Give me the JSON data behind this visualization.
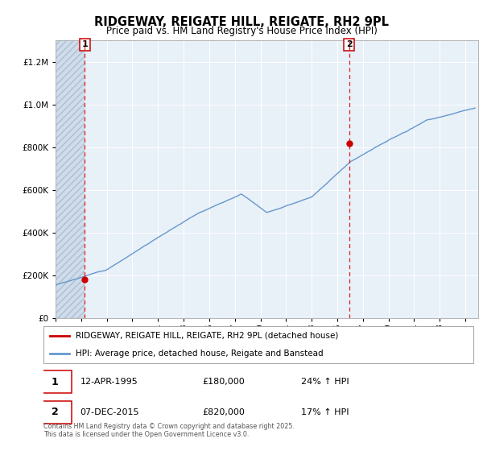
{
  "title": "RIDGEWAY, REIGATE HILL, REIGATE, RH2 9PL",
  "subtitle": "Price paid vs. HM Land Registry's House Price Index (HPI)",
  "legend_line1": "RIDGEWAY, REIGATE HILL, REIGATE, RH2 9PL (detached house)",
  "legend_line2": "HPI: Average price, detached house, Reigate and Banstead",
  "annotation1_date": "12-APR-1995",
  "annotation1_price": "£180,000",
  "annotation1_hpi": "24% ↑ HPI",
  "annotation2_date": "07-DEC-2015",
  "annotation2_price": "£820,000",
  "annotation2_hpi": "17% ↑ HPI",
  "footer": "Contains HM Land Registry data © Crown copyright and database right 2025.\nThis data is licensed under the Open Government Licence v3.0.",
  "red_line_color": "#cc0000",
  "blue_line_color": "#6699cc",
  "vline1_x": 1995.28,
  "vline2_x": 2015.92,
  "sale1_y": 180000,
  "sale2_y": 820000,
  "ylim": [
    0,
    1300000
  ],
  "xlim_start": 1993,
  "xlim_end": 2026,
  "yticks": [
    0,
    200000,
    400000,
    600000,
    800000,
    1000000,
    1200000
  ]
}
